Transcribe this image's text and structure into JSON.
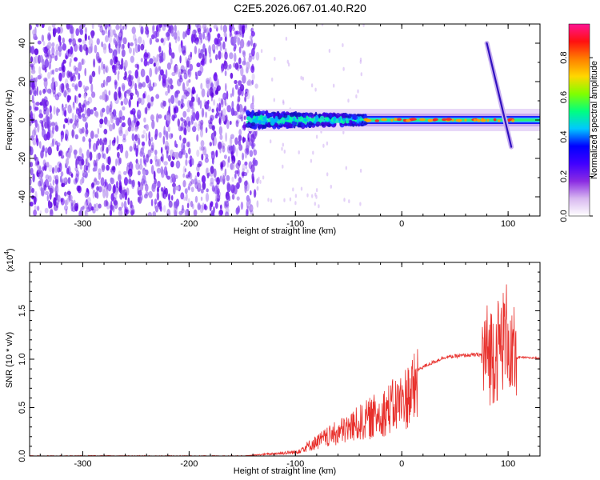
{
  "title": "C2E5.2026.067.01.40.R20",
  "chart_data": [
    {
      "type": "heatmap",
      "xlabel": "Height of straight line (km)",
      "ylabel": "Frequency (Hz)",
      "xlim": [
        -350,
        130
      ],
      "ylim": [
        -50,
        50
      ],
      "xticks": [
        -300,
        -200,
        -100,
        0,
        100
      ],
      "yticks": [
        -40,
        -20,
        0,
        20,
        40
      ],
      "colorbar": {
        "label": "Normalized spectral amplitude",
        "range": [
          0.0,
          0.97
        ],
        "ticks": [
          "0.0",
          "0.2",
          "0.4",
          "0.6",
          "0.8"
        ],
        "colors": [
          "#ffffff",
          "#d8b8f0",
          "#8a2be2",
          "#4000ff",
          "#0000ff",
          "#00c8ff",
          "#00ff80",
          "#80ff00",
          "#ffd700",
          "#ff7f00",
          "#ff1010",
          "#ff1493"
        ]
      },
      "features": {
        "noise_region_x": [
          -350,
          -140
        ],
        "carrier_band_x": [
          -145,
          130
        ],
        "carrier_frequency": 0,
        "spectral_line_x": [
          80,
          103
        ],
        "spectral_line_frequency": [
          40,
          -14
        ]
      }
    },
    {
      "type": "line",
      "xlabel": "Height of straight line (km)",
      "ylabel": "SNR (10 * v/v)",
      "exponent_label": "(x10",
      "exponent_power": "4",
      "xlim": [
        -350,
        130
      ],
      "ylim": [
        0,
        2.0
      ],
      "xticks": [
        -300,
        -200,
        -100,
        0,
        100
      ],
      "yticks": [
        "0.0",
        "0.5",
        "1.0",
        "1.5"
      ],
      "color": "#e8302c",
      "x": [
        -350,
        -150,
        -100,
        -80,
        -60,
        -40,
        -20,
        0,
        10,
        20,
        40,
        60,
        80,
        90,
        95,
        100,
        103,
        106,
        110,
        130
      ],
      "y": [
        0.0,
        0.0,
        0.05,
        0.18,
        0.3,
        0.42,
        0.55,
        0.7,
        0.85,
        0.92,
        1.02,
        1.04,
        1.05,
        1.1,
        1.2,
        1.3,
        0.9,
        1.0,
        1.02,
        1.01
      ]
    }
  ]
}
